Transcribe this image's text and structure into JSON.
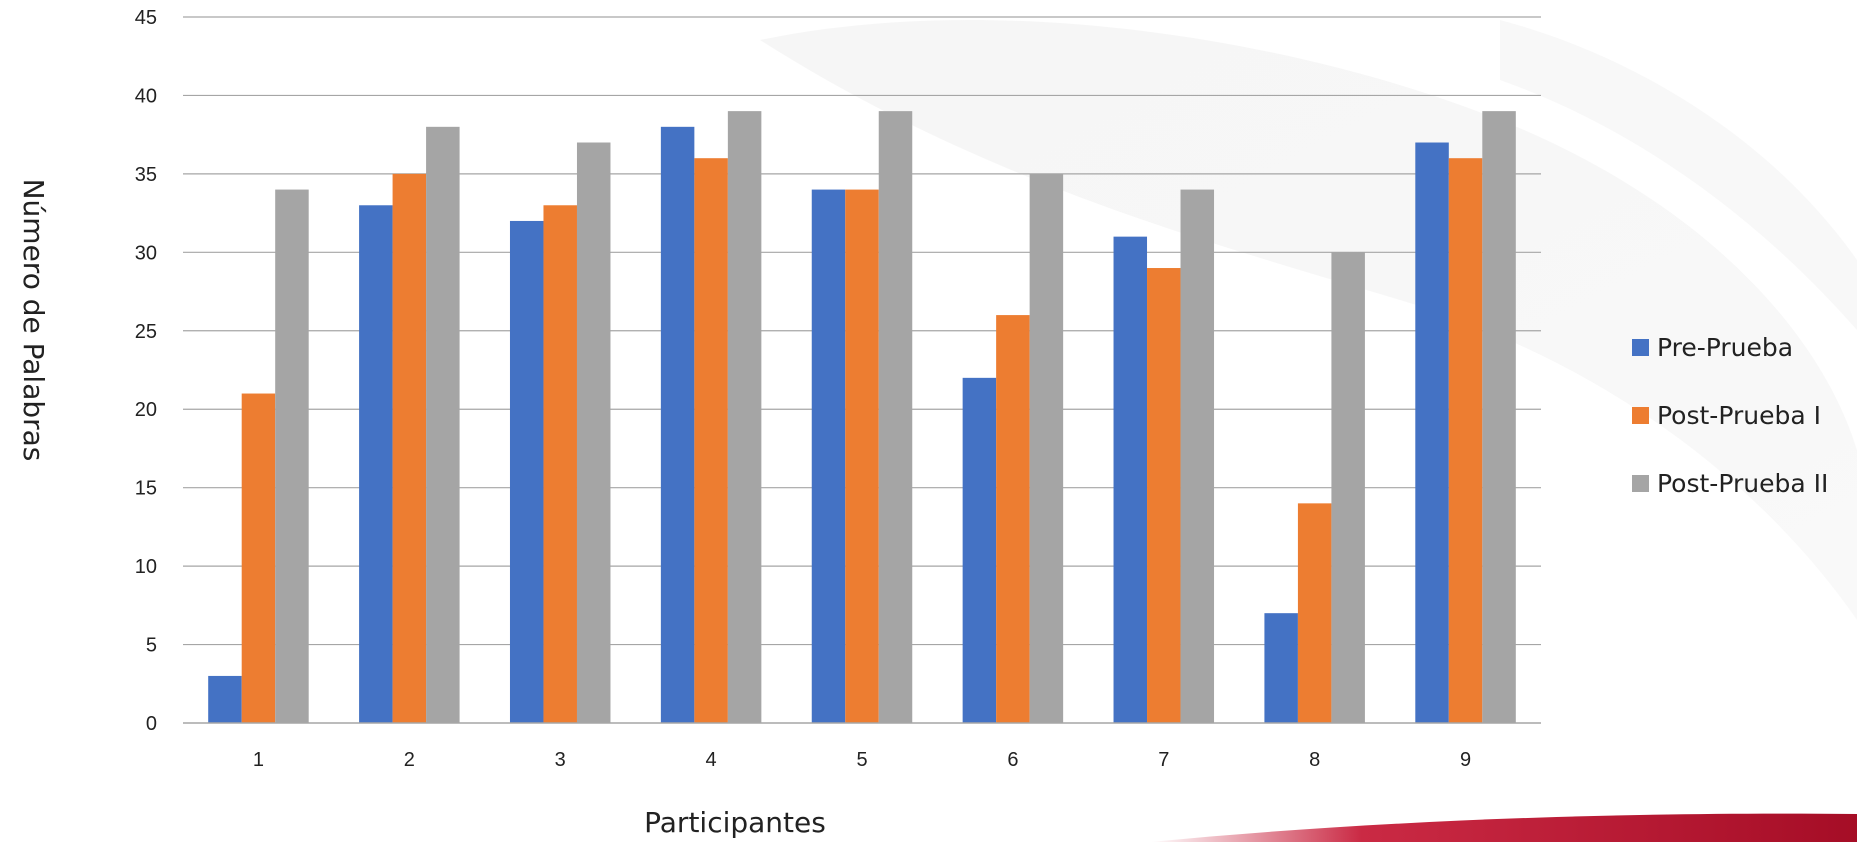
{
  "chart_data": {
    "type": "bar",
    "categories": [
      "1",
      "2",
      "3",
      "4",
      "5",
      "6",
      "7",
      "8",
      "9"
    ],
    "series": [
      {
        "name": "Pre-Prueba",
        "color": "#4472C4",
        "values": [
          3,
          33,
          32,
          38,
          34,
          22,
          31,
          7,
          37
        ]
      },
      {
        "name": "Post-Prueba I",
        "color": "#ED7D31",
        "values": [
          21,
          35,
          33,
          36,
          34,
          26,
          29,
          14,
          36
        ]
      },
      {
        "name": "Post-Prueba II",
        "color": "#A5A5A5",
        "values": [
          34,
          38,
          37,
          39,
          39,
          35,
          34,
          30,
          39
        ]
      }
    ],
    "xlabel": "Participantes",
    "ylabel": "Número de Palabras",
    "ylim": [
      0,
      45
    ],
    "yticks": [
      "0",
      "5",
      "10",
      "15",
      "20",
      "25",
      "30",
      "35",
      "40",
      "45"
    ],
    "grid": true,
    "legend_position": "right"
  }
}
